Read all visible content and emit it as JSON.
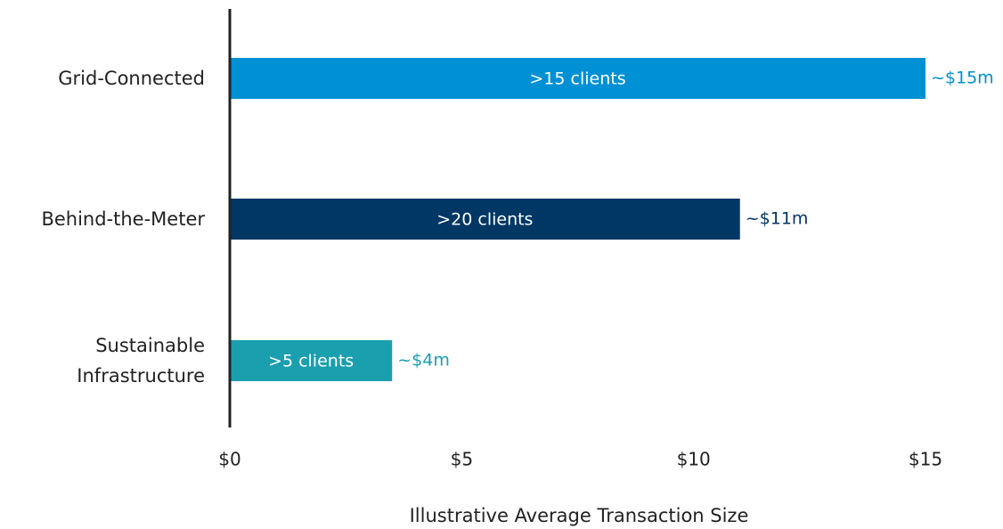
{
  "chart_data": {
    "type": "bar",
    "orientation": "horizontal",
    "x_label": "Illustrative Average Transaction Size",
    "categories": [
      "Grid-Connected",
      "Behind-the-Meter",
      "Sustainable Infrastructure"
    ],
    "values": [
      15,
      11,
      3.5
    ],
    "value_labels": [
      "~$15m",
      "~$11m",
      "~$4m"
    ],
    "bar_labels": [
      ">15 clients",
      ">20 clients",
      ">5 clients"
    ],
    "colors": [
      "#0090d4",
      "#003764",
      "#1a9fae"
    ],
    "xlim": [
      0,
      15
    ],
    "xticks": [
      {
        "value": 0,
        "label": "$0"
      },
      {
        "value": 5,
        "label": "$5"
      },
      {
        "value": 10,
        "label": "$10"
      },
      {
        "value": 15,
        "label": "$15"
      }
    ]
  }
}
